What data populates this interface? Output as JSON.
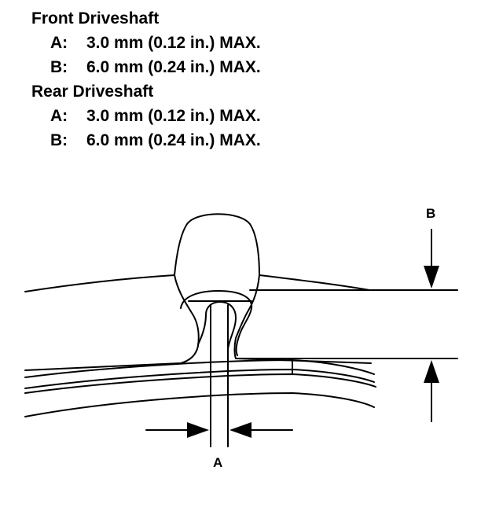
{
  "specs": {
    "front": {
      "title": "Front Driveshaft",
      "a": {
        "label": "A:",
        "value": "3.0 mm (0.12 in.) MAX."
      },
      "b": {
        "label": "B:",
        "value": "6.0 mm (0.24 in.) MAX."
      }
    },
    "rear": {
      "title": "Rear Driveshaft",
      "a": {
        "label": "A:",
        "value": "3.0 mm (0.12 in.) MAX."
      },
      "b": {
        "label": "B:",
        "value": "6.0 mm (0.24 in.) MAX."
      }
    }
  },
  "diagram": {
    "label_a": "A",
    "label_b": "B",
    "line_color": "#000000",
    "background": "#ffffff"
  }
}
